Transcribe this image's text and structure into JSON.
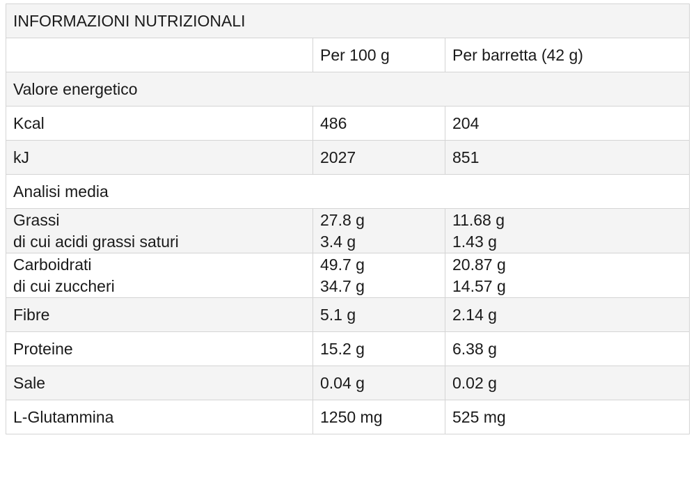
{
  "title": "INFORMAZIONI NUTRIZIONALI",
  "headers": {
    "label": "",
    "per100": "Per 100 g",
    "perBar": "Per barretta (42 g)"
  },
  "sections": {
    "energy": "Valore energetico",
    "analysis": "Analisi media"
  },
  "rows": {
    "kcal": {
      "label": "Kcal",
      "per100": "486",
      "perBar": "204"
    },
    "kj": {
      "label": "kJ",
      "per100": "2027",
      "perBar": "851"
    },
    "fat": {
      "label": "Grassi",
      "sublabel": "di cui acidi grassi saturi",
      "per100": "27.8 g",
      "per100_sub": "3.4 g",
      "perBar": "11.68 g",
      "perBar_sub": "1.43 g"
    },
    "carbs": {
      "label": "Carboidrati",
      "sublabel": "di cui zuccheri",
      "per100": "49.7 g",
      "per100_sub": "34.7 g",
      "perBar": "20.87 g",
      "perBar_sub": "14.57 g"
    },
    "fibre": {
      "label": "Fibre",
      "per100": "5.1 g",
      "perBar": "2.14 g"
    },
    "protein": {
      "label": "Proteine",
      "per100": "15.2 g",
      "perBar": "6.38 g"
    },
    "salt": {
      "label": "Sale",
      "per100": "0.04 g",
      "perBar": "0.02 g"
    },
    "glutamine": {
      "label": "L-Glutammina",
      "per100": "1250 mg",
      "perBar": "525 mg"
    }
  }
}
